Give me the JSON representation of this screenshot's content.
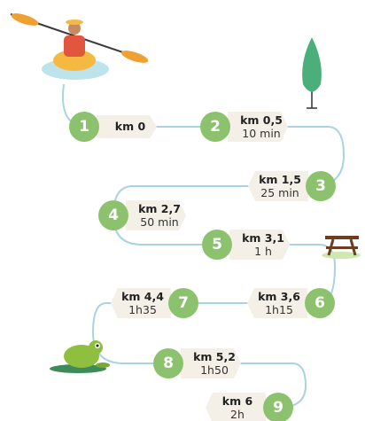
{
  "nodes": [
    {
      "number": "1",
      "distance": "km 0"
    },
    {
      "number": "2",
      "distance": "km 0,5",
      "time": "10 min"
    },
    {
      "number": "3",
      "distance": "km 1,5",
      "time": "25 min"
    },
    {
      "number": "4",
      "distance": "km 2,7",
      "time": "50 min"
    },
    {
      "number": "5",
      "distance": "km 3,1",
      "time": "1 h"
    },
    {
      "number": "6",
      "distance": "km 3,6",
      "time": "1h15"
    },
    {
      "number": "7",
      "distance": "km 4,4",
      "time": "1h35"
    },
    {
      "number": "8",
      "distance": "km 5,2",
      "time": "1h50"
    },
    {
      "number": "9",
      "distance": "km 6",
      "time": "2h"
    }
  ]
}
